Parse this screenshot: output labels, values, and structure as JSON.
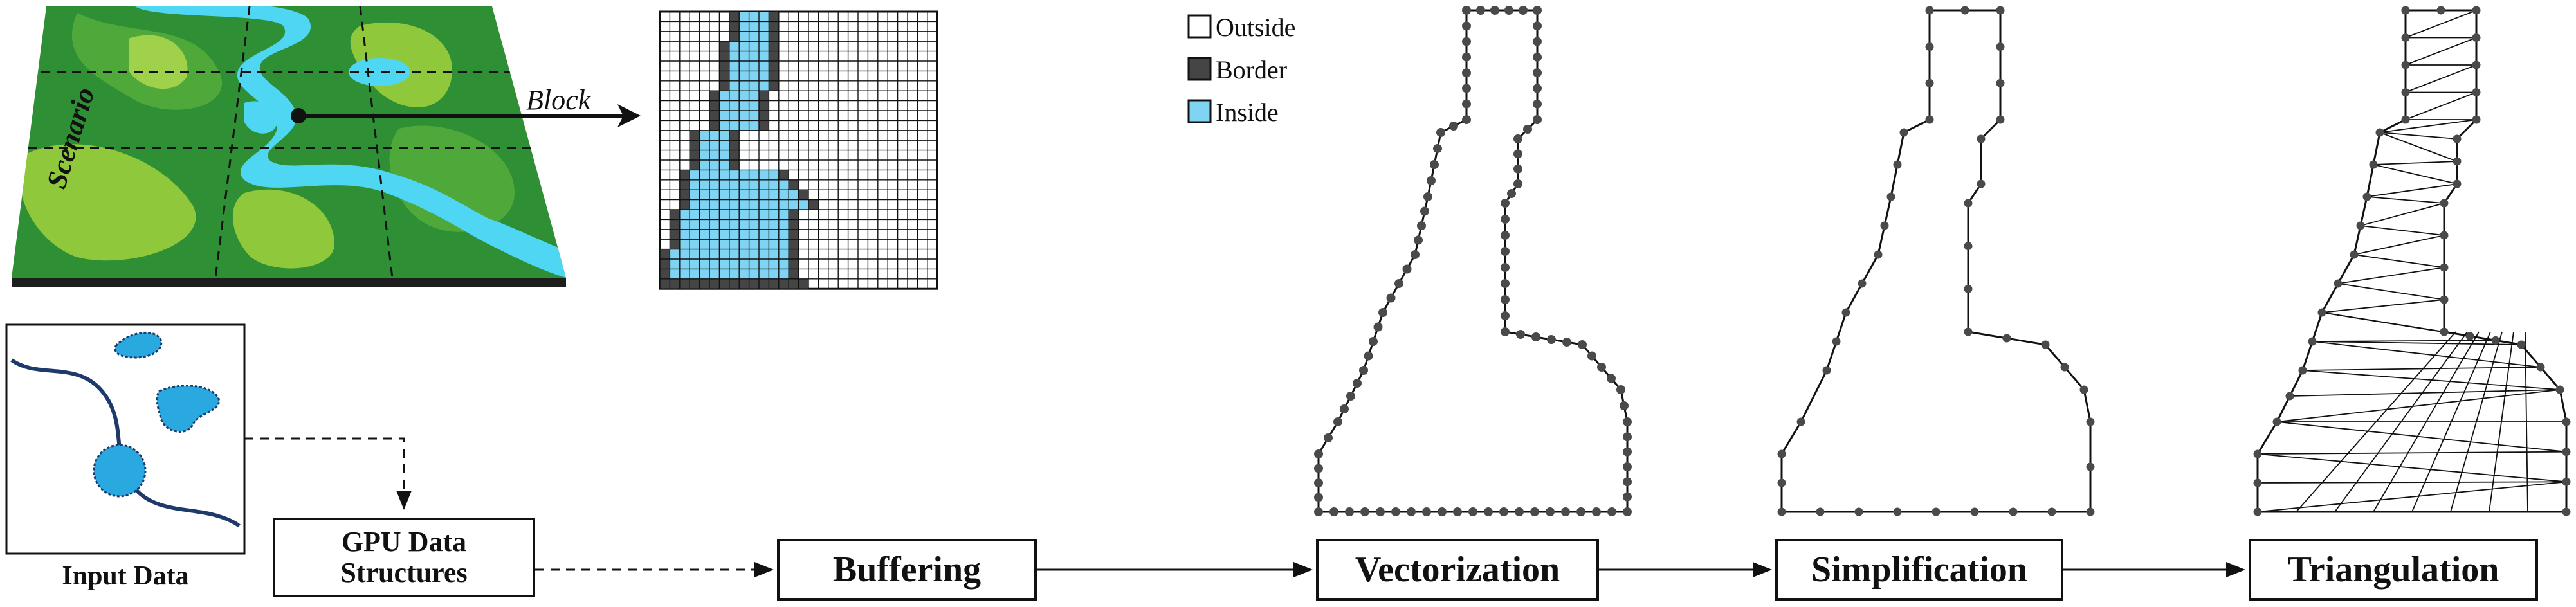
{
  "scenario_label": "Scenario",
  "block_label": "Block",
  "input_data_label": "Input Data",
  "gpu_label": "GPU Data\nStructures",
  "legend": [
    {
      "label": "Outside",
      "color": "#ffffff"
    },
    {
      "label": "Border",
      "color": "#454545"
    },
    {
      "label": "Inside",
      "color": "#7ed4f2"
    }
  ],
  "stages": [
    "Buffering",
    "Vectorization",
    "Simplification",
    "Triangulation"
  ],
  "colors": {
    "water": "#4fd6f2",
    "grass_dark": "#2f8f35",
    "grass_light": "#8fc83a",
    "border_cell": "#454545",
    "inside_cell": "#7ed4f2",
    "node": "#4a4a4a"
  }
}
